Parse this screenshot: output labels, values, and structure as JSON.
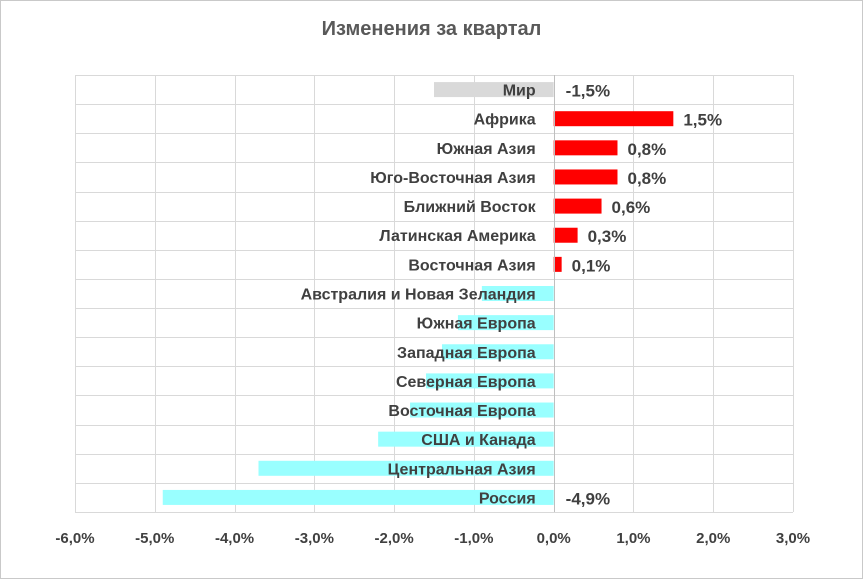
{
  "chart_data": {
    "type": "bar",
    "orientation": "horizontal",
    "title": "Изменения за квартал",
    "xlim": [
      -6.0,
      3.0
    ],
    "x_ticks": [
      -6,
      -5,
      -4,
      -3,
      -2,
      -1,
      0,
      1,
      2,
      3
    ],
    "x_tick_labels": [
      "-6,0%",
      "-5,0%",
      "-4,0%",
      "-3,0%",
      "-2,0%",
      "-1,0%",
      "0,0%",
      "1,0%",
      "2,0%",
      "3,0%"
    ],
    "grid": "vertical",
    "legend": "none",
    "categories": [
      "Мир",
      "Африка",
      "Южная Азия",
      "Юго-Восточная Азия",
      "Ближний Восток",
      "Латинская Америка",
      "Восточная Азия",
      "Австралия и Новая Зеландия",
      "Южная Европа",
      "Западная Европа",
      "Северная Европа",
      "Восточная Европа",
      "США и Канада",
      "Центральная Азия",
      "Россия"
    ],
    "values": [
      -1.5,
      1.5,
      0.8,
      0.8,
      0.6,
      0.3,
      0.1,
      -0.9,
      -1.2,
      -1.4,
      -1.6,
      -1.8,
      -2.2,
      -3.7,
      -4.9
    ],
    "data_labels": [
      "-1,5%",
      "1,5%",
      "0,8%",
      "0,8%",
      "0,6%",
      "0,3%",
      "0,1%",
      "",
      "",
      "",
      "",
      "",
      "",
      "",
      "-4,9%"
    ],
    "colors": {
      "world": "#d9d9d9",
      "positive": "#ff0000",
      "negative": "#99ffff",
      "grid": "#d9d9d9",
      "text": "#404040"
    }
  }
}
